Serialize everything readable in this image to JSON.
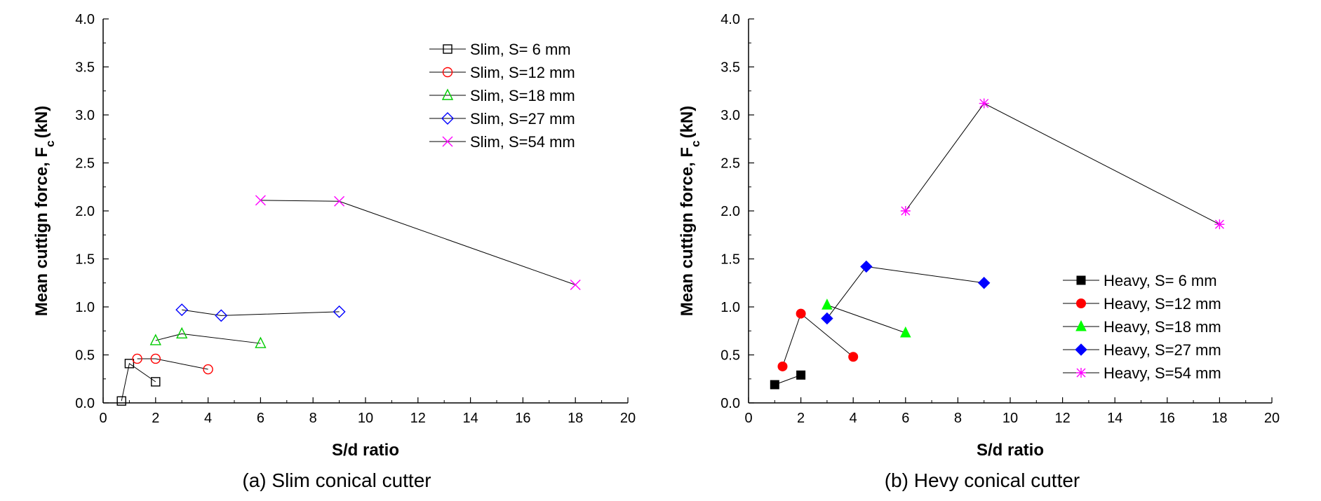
{
  "charts": [
    {
      "caption": "(a) Slim conical cutter",
      "chart_data": {
        "type": "scatter",
        "xlabel": "S/d ratio",
        "ylabel_main": "Mean cuttign force, F",
        "ylabel_sub": "c",
        "ylabel_unit": "(kN)",
        "xlim": [
          0,
          20
        ],
        "ylim": [
          0,
          4
        ],
        "xticks": [
          "0",
          "2",
          "4",
          "6",
          "8",
          "10",
          "12",
          "14",
          "16",
          "18",
          "20"
        ],
        "yticks": [
          "0.0",
          "0.5",
          "1.0",
          "1.5",
          "2.0",
          "2.5",
          "3.0",
          "3.5",
          "4.0"
        ],
        "grid": false,
        "legend_position": "top-right",
        "series": [
          {
            "name": "Slim, S=  6 mm",
            "marker": "square-open",
            "color": "#000000",
            "points": [
              [
                0.7,
                0.02
              ],
              [
                1.0,
                0.41
              ],
              [
                2.0,
                0.22
              ]
            ]
          },
          {
            "name": "Slim, S=12 mm",
            "marker": "circle-open",
            "color": "#ff0000",
            "points": [
              [
                1.3,
                0.46
              ],
              [
                2.0,
                0.46
              ],
              [
                4.0,
                0.35
              ]
            ]
          },
          {
            "name": "Slim, S=18 mm",
            "marker": "triangle-open",
            "color": "#00cc00",
            "points": [
              [
                2.0,
                0.65
              ],
              [
                3.0,
                0.72
              ],
              [
                6.0,
                0.62
              ]
            ]
          },
          {
            "name": "Slim, S=27 mm",
            "marker": "diamond-open",
            "color": "#0000ff",
            "points": [
              [
                3.0,
                0.97
              ],
              [
                4.5,
                0.91
              ],
              [
                9.0,
                0.95
              ]
            ]
          },
          {
            "name": "Slim, S=54 mm",
            "marker": "x",
            "color": "#ff00ff",
            "points": [
              [
                6.0,
                2.11
              ],
              [
                9.0,
                2.1
              ],
              [
                18.0,
                1.23
              ]
            ]
          }
        ]
      }
    },
    {
      "caption": "(b) Hevy conical cutter",
      "chart_data": {
        "type": "scatter",
        "xlabel": "S/d ratio",
        "ylabel_main": "Mean cuttign force, F",
        "ylabel_sub": "c",
        "ylabel_unit": "(kN)",
        "xlim": [
          0,
          20
        ],
        "ylim": [
          0,
          4
        ],
        "xticks": [
          "0",
          "2",
          "4",
          "6",
          "8",
          "10",
          "12",
          "14",
          "16",
          "18",
          "20"
        ],
        "yticks": [
          "0.0",
          "0.5",
          "1.0",
          "1.5",
          "2.0",
          "2.5",
          "3.0",
          "3.5",
          "4.0"
        ],
        "grid": false,
        "legend_position": "bottom-right",
        "series": [
          {
            "name": "Heavy, S=  6 mm",
            "marker": "square-filled",
            "color": "#000000",
            "points": [
              [
                1.0,
                0.19
              ],
              [
                2.0,
                0.29
              ]
            ]
          },
          {
            "name": "Heavy, S=12 mm",
            "marker": "circle-filled",
            "color": "#ff0000",
            "points": [
              [
                1.3,
                0.38
              ],
              [
                2.0,
                0.93
              ],
              [
                4.0,
                0.48
              ]
            ]
          },
          {
            "name": "Heavy, S=18 mm",
            "marker": "triangle-filled",
            "color": "#00ff00",
            "points": [
              [
                3.0,
                1.02
              ],
              [
                6.0,
                0.73
              ]
            ]
          },
          {
            "name": "Heavy, S=27 mm",
            "marker": "diamond-filled",
            "color": "#0000ff",
            "points": [
              [
                3.0,
                0.88
              ],
              [
                4.5,
                1.42
              ],
              [
                9.0,
                1.25
              ]
            ]
          },
          {
            "name": "Heavy, S=54 mm",
            "marker": "asterisk",
            "color": "#ff00ff",
            "points": [
              [
                6.0,
                2.0
              ],
              [
                9.0,
                3.12
              ],
              [
                18.0,
                1.86
              ]
            ]
          }
        ]
      }
    }
  ]
}
